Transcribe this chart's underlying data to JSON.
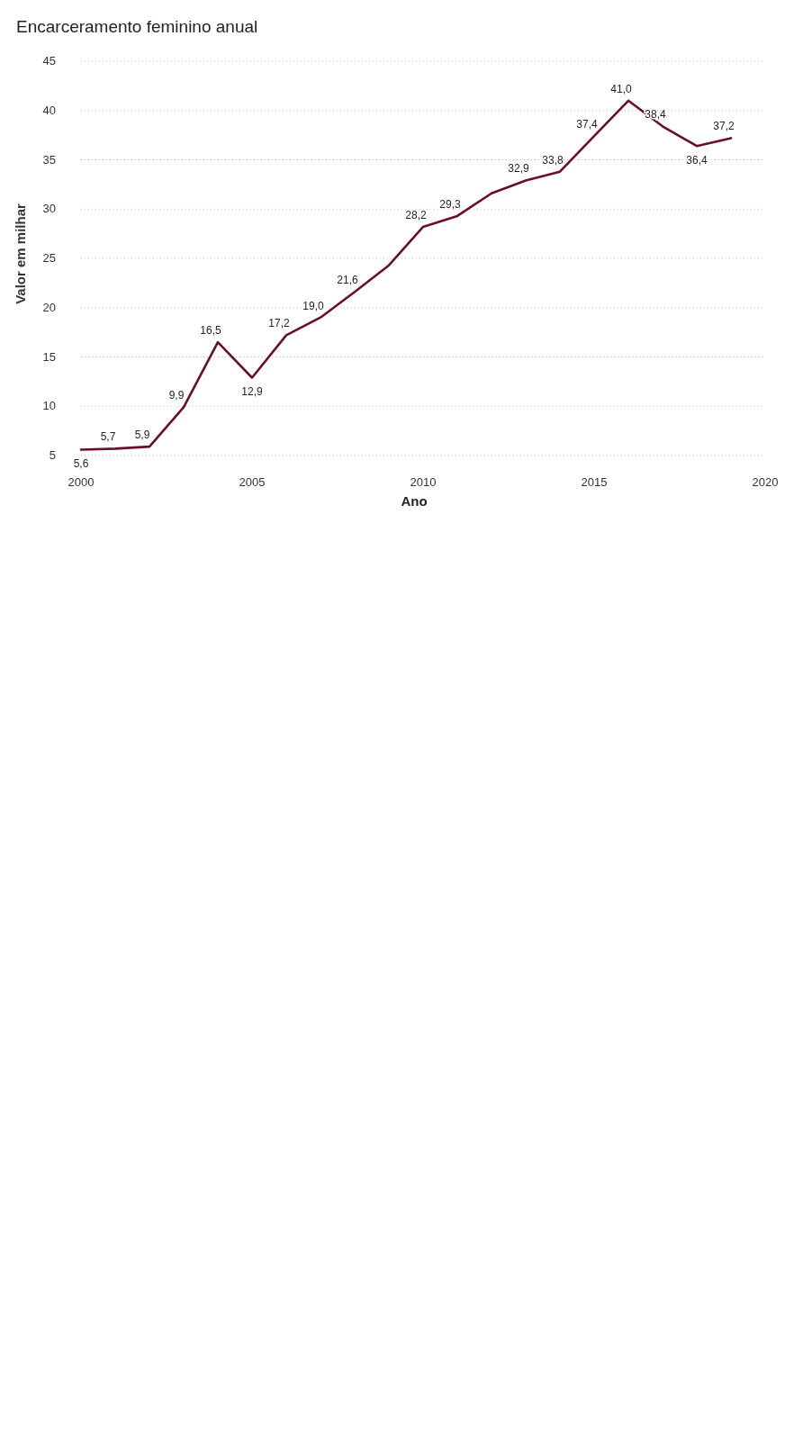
{
  "chart_data": {
    "type": "line",
    "title": "Encarceramento feminino anual",
    "xlabel": "Ano",
    "ylabel": "Valor em milhar",
    "x": [
      2000,
      2001,
      2002,
      2003,
      2004,
      2005,
      2006,
      2007,
      2008,
      2009,
      2010,
      2011,
      2012,
      2013,
      2014,
      2015,
      2016,
      2017,
      2018,
      2019
    ],
    "series": [
      {
        "color": "#6b0f24",
        "values": [
          5.6,
          5.7,
          5.9,
          9.9,
          16.5,
          12.9,
          17.2,
          19.0,
          21.6,
          24.3,
          28.2,
          29.3,
          31.6,
          32.9,
          33.8,
          37.4,
          41.0,
          38.4,
          36.4,
          37.2
        ],
        "value_labels": [
          "5,6",
          "5,7",
          "5,9",
          "9,9",
          "16,5",
          "12,9",
          "17,2",
          "19,0",
          "21,6",
          null,
          "28,2",
          "29,3",
          null,
          "32,9",
          "33,8",
          "37,4",
          "41,0",
          "38,4",
          "36,4",
          "37,2"
        ]
      }
    ],
    "xlim": [
      2000,
      2020
    ],
    "xticks": [
      2000,
      2005,
      2010,
      2015,
      2020
    ],
    "ylim": [
      5,
      45
    ],
    "yticks": [
      5,
      10,
      15,
      20,
      25,
      30,
      35,
      40,
      45
    ],
    "grid": "y",
    "marker": "none",
    "line_style": "solid"
  }
}
